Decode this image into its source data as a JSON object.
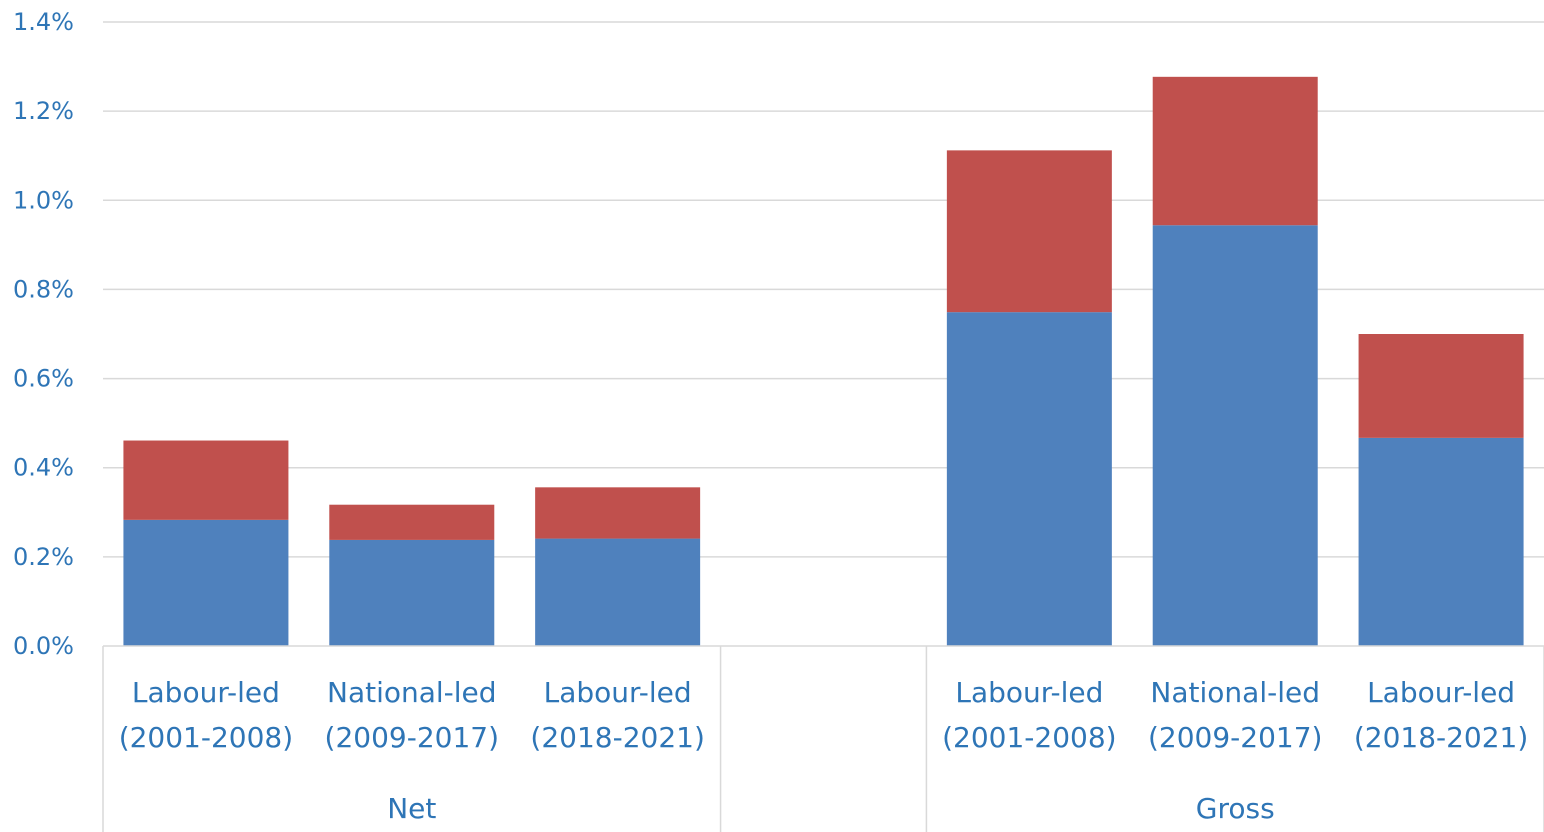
{
  "chart_data": {
    "type": "bar",
    "stacked": true,
    "title": "",
    "xlabel": "",
    "ylabel": "",
    "ylim": [
      0,
      0.014
    ],
    "yticks": [
      "0.0%",
      "0.2%",
      "0.4%",
      "0.6%",
      "0.8%",
      "1.0%",
      "1.2%",
      "1.4%"
    ],
    "grid": true,
    "groups": [
      "Net",
      "",
      "Gross"
    ],
    "categories": [
      [
        "Labour-led",
        "(2001-2008)"
      ],
      [
        "National-led",
        "(2009-2017)"
      ],
      [
        "Labour-led",
        "(2018-2021)"
      ],
      [
        "",
        ""
      ],
      [
        "Labour-led",
        "(2001-2008)"
      ],
      [
        "National-led",
        "(2009-2017)"
      ],
      [
        "Labour-led",
        "(2018-2021)"
      ]
    ],
    "series": [
      {
        "color": "#4F81BD",
        "values": [
          0.00283,
          0.00238,
          0.00241,
          null,
          0.00749,
          0.00944,
          0.00467
        ]
      },
      {
        "color": "#C0504D",
        "values": [
          0.00178,
          0.00079,
          0.00115,
          null,
          0.00363,
          0.00333,
          0.00233
        ]
      }
    ],
    "axis_color": "#D9D9D9",
    "label_color": "#2E75B6"
  }
}
